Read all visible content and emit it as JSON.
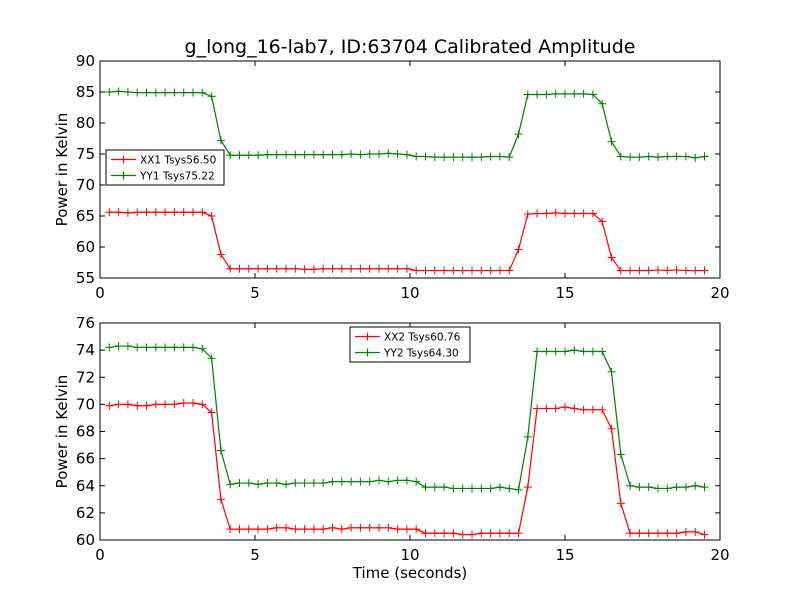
{
  "figure_title": "g_long_16-lab7, ID:63704 Calibrated Amplitude",
  "colors": {
    "series1": "#ff0000",
    "series2": "#008000",
    "axis": "#000000"
  },
  "chart_data": [
    {
      "type": "line",
      "title": "g_long_16-lab7, ID:63704 Calibrated Amplitude",
      "xlabel": "",
      "ylabel": "Power in Kelvin",
      "xlim": [
        0,
        20
      ],
      "ylim": [
        55,
        90
      ],
      "xticks": [
        0,
        5,
        10,
        15,
        20
      ],
      "yticks": [
        55,
        60,
        65,
        70,
        75,
        80,
        85,
        90
      ],
      "grid": false,
      "legend_position": "center-left",
      "x": [
        0.3,
        0.6,
        0.9,
        1.2,
        1.5,
        1.8,
        2.1,
        2.4,
        2.7,
        3.0,
        3.3,
        3.6,
        3.9,
        4.2,
        4.5,
        4.8,
        5.1,
        5.4,
        5.7,
        6.0,
        6.3,
        6.6,
        6.9,
        7.2,
        7.5,
        7.8,
        8.1,
        8.4,
        8.7,
        9.0,
        9.3,
        9.6,
        9.9,
        10.2,
        10.5,
        10.8,
        11.1,
        11.4,
        11.7,
        12.0,
        12.3,
        12.6,
        12.9,
        13.2,
        13.5,
        13.8,
        14.1,
        14.4,
        14.7,
        15.0,
        15.3,
        15.6,
        15.9,
        16.2,
        16.5,
        16.8,
        17.1,
        17.4,
        17.7,
        18.0,
        18.3,
        18.6,
        18.9,
        19.2,
        19.5
      ],
      "series": [
        {
          "name": "XX1 Tsys56.50",
          "color": "#ff0000",
          "values": [
            65.6,
            65.6,
            65.5,
            65.6,
            65.6,
            65.6,
            65.6,
            65.6,
            65.6,
            65.6,
            65.6,
            65.0,
            58.8,
            56.5,
            56.5,
            56.5,
            56.5,
            56.5,
            56.5,
            56.5,
            56.5,
            56.4,
            56.4,
            56.5,
            56.5,
            56.5,
            56.5,
            56.5,
            56.5,
            56.5,
            56.5,
            56.5,
            56.5,
            56.2,
            56.2,
            56.2,
            56.2,
            56.2,
            56.2,
            56.2,
            56.2,
            56.2,
            56.2,
            56.2,
            59.6,
            65.3,
            65.4,
            65.4,
            65.5,
            65.4,
            65.4,
            65.4,
            65.4,
            64.1,
            58.3,
            56.2,
            56.2,
            56.2,
            56.2,
            56.3,
            56.2,
            56.3,
            56.2,
            56.2,
            56.2
          ]
        },
        {
          "name": "YY1 Tsys75.22",
          "color": "#008000",
          "values": [
            85.0,
            85.1,
            85.0,
            84.9,
            84.9,
            84.9,
            84.9,
            84.9,
            84.9,
            84.9,
            84.9,
            84.3,
            77.2,
            74.8,
            74.8,
            74.8,
            74.8,
            74.9,
            74.9,
            74.9,
            74.9,
            74.9,
            74.9,
            74.9,
            74.9,
            74.9,
            75.0,
            74.9,
            75.0,
            75.0,
            75.1,
            75.0,
            74.9,
            74.6,
            74.6,
            74.5,
            74.5,
            74.5,
            74.5,
            74.5,
            74.5,
            74.6,
            74.6,
            74.5,
            78.2,
            84.6,
            84.6,
            84.6,
            84.7,
            84.7,
            84.7,
            84.7,
            84.6,
            83.1,
            77.0,
            74.6,
            74.5,
            74.5,
            74.6,
            74.5,
            74.6,
            74.6,
            74.6,
            74.4,
            74.6
          ]
        }
      ]
    },
    {
      "type": "line",
      "title": "",
      "xlabel": "Time (seconds)",
      "ylabel": "Power in Kelvin",
      "xlim": [
        0,
        20
      ],
      "ylim": [
        60,
        76
      ],
      "xticks": [
        0,
        5,
        10,
        15,
        20
      ],
      "yticks": [
        60,
        62,
        64,
        66,
        68,
        70,
        72,
        74,
        76
      ],
      "grid": false,
      "legend_position": "upper-center",
      "x": [
        0.3,
        0.6,
        0.9,
        1.2,
        1.5,
        1.8,
        2.1,
        2.4,
        2.7,
        3.0,
        3.3,
        3.6,
        3.9,
        4.2,
        4.5,
        4.8,
        5.1,
        5.4,
        5.7,
        6.0,
        6.3,
        6.6,
        6.9,
        7.2,
        7.5,
        7.8,
        8.1,
        8.4,
        8.7,
        9.0,
        9.3,
        9.6,
        9.9,
        10.2,
        10.5,
        10.8,
        11.1,
        11.4,
        11.7,
        12.0,
        12.3,
        12.6,
        12.9,
        13.2,
        13.5,
        13.8,
        14.1,
        14.4,
        14.7,
        15.0,
        15.3,
        15.6,
        15.9,
        16.2,
        16.5,
        16.8,
        17.1,
        17.4,
        17.7,
        18.0,
        18.3,
        18.6,
        18.9,
        19.2,
        19.5
      ],
      "series": [
        {
          "name": "XX2 Tsys60.76",
          "color": "#ff0000",
          "values": [
            69.9,
            70.0,
            70.0,
            69.9,
            69.9,
            70.0,
            70.0,
            70.0,
            70.1,
            70.1,
            70.0,
            69.4,
            63.0,
            60.8,
            60.8,
            60.8,
            60.8,
            60.8,
            60.9,
            60.9,
            60.8,
            60.8,
            60.8,
            60.8,
            60.9,
            60.8,
            60.9,
            60.9,
            60.9,
            60.9,
            60.9,
            60.8,
            60.8,
            60.8,
            60.5,
            60.5,
            60.5,
            60.5,
            60.4,
            60.4,
            60.5,
            60.5,
            60.5,
            60.5,
            60.5,
            63.9,
            69.7,
            69.7,
            69.7,
            69.8,
            69.7,
            69.6,
            69.6,
            69.6,
            68.2,
            62.7,
            60.5,
            60.5,
            60.5,
            60.5,
            60.5,
            60.5,
            60.6,
            60.6,
            60.4
          ]
        },
        {
          "name": "YY2 Tsys64.30",
          "color": "#008000",
          "values": [
            74.2,
            74.3,
            74.3,
            74.2,
            74.2,
            74.2,
            74.2,
            74.2,
            74.2,
            74.2,
            74.1,
            73.4,
            66.6,
            64.1,
            64.2,
            64.2,
            64.1,
            64.2,
            64.2,
            64.1,
            64.2,
            64.2,
            64.2,
            64.2,
            64.3,
            64.3,
            64.3,
            64.3,
            64.3,
            64.4,
            64.3,
            64.4,
            64.4,
            64.3,
            63.9,
            63.9,
            63.9,
            63.8,
            63.8,
            63.8,
            63.8,
            63.8,
            63.9,
            63.8,
            63.7,
            67.6,
            73.9,
            73.9,
            73.9,
            73.9,
            74.0,
            73.9,
            73.9,
            73.9,
            72.4,
            66.3,
            64.0,
            63.9,
            63.9,
            63.8,
            63.8,
            63.9,
            63.9,
            64.0,
            63.9
          ]
        }
      ]
    }
  ]
}
